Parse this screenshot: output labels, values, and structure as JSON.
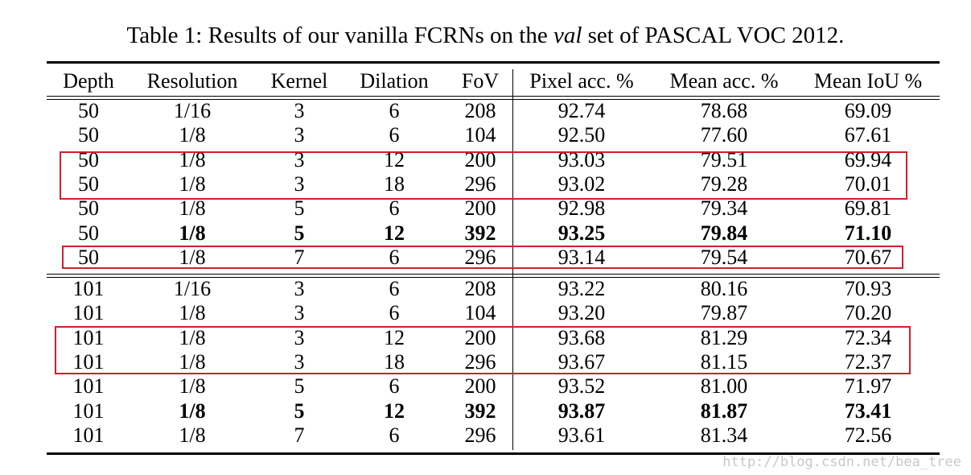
{
  "caption": {
    "prefix": "Table 1: Results of our vanilla FCRNs on the ",
    "italic": "val",
    "suffix": " set of PASCAL VOC 2012."
  },
  "columns": [
    "Depth",
    "Resolution",
    "Kernel",
    "Dilation",
    "FoV",
    "Pixel acc. %",
    "Mean acc. %",
    "Mean IoU %"
  ],
  "groups": [
    {
      "rows": [
        {
          "cells": [
            "50",
            "1/16",
            "3",
            "6",
            "208",
            "92.74",
            "78.68",
            "69.09"
          ],
          "bold_from": null
        },
        {
          "cells": [
            "50",
            "1/8",
            "3",
            "6",
            "104",
            "92.50",
            "77.60",
            "67.61"
          ],
          "bold_from": null
        },
        {
          "cells": [
            "50",
            "1/8",
            "3",
            "12",
            "200",
            "93.03",
            "79.51",
            "69.94"
          ],
          "bold_from": null
        },
        {
          "cells": [
            "50",
            "1/8",
            "3",
            "18",
            "296",
            "93.02",
            "79.28",
            "70.01"
          ],
          "bold_from": null
        },
        {
          "cells": [
            "50",
            "1/8",
            "5",
            "6",
            "200",
            "92.98",
            "79.34",
            "69.81"
          ],
          "bold_from": null
        },
        {
          "cells": [
            "50",
            "1/8",
            "5",
            "12",
            "392",
            "93.25",
            "79.84",
            "71.10"
          ],
          "bold_from": 1
        },
        {
          "cells": [
            "50",
            "1/8",
            "7",
            "6",
            "296",
            "93.14",
            "79.54",
            "70.67"
          ],
          "bold_from": null
        }
      ]
    },
    {
      "rows": [
        {
          "cells": [
            "101",
            "1/16",
            "3",
            "6",
            "208",
            "93.22",
            "80.16",
            "70.93"
          ],
          "bold_from": null
        },
        {
          "cells": [
            "101",
            "1/8",
            "3",
            "6",
            "104",
            "93.20",
            "79.87",
            "70.20"
          ],
          "bold_from": null
        },
        {
          "cells": [
            "101",
            "1/8",
            "3",
            "12",
            "200",
            "93.68",
            "81.29",
            "72.34"
          ],
          "bold_from": null
        },
        {
          "cells": [
            "101",
            "1/8",
            "3",
            "18",
            "296",
            "93.67",
            "81.15",
            "72.37"
          ],
          "bold_from": null
        },
        {
          "cells": [
            "101",
            "1/8",
            "5",
            "6",
            "200",
            "93.52",
            "81.00",
            "71.97"
          ],
          "bold_from": null
        },
        {
          "cells": [
            "101",
            "1/8",
            "5",
            "12",
            "392",
            "93.87",
            "81.87",
            "73.41"
          ],
          "bold_from": 1
        },
        {
          "cells": [
            "101",
            "1/8",
            "7",
            "6",
            "296",
            "93.61",
            "81.34",
            "72.56"
          ],
          "bold_from": null
        }
      ]
    }
  ],
  "highlight_color": "#d21e2a",
  "watermark": "http://blog.csdn.net/bea_tree"
}
